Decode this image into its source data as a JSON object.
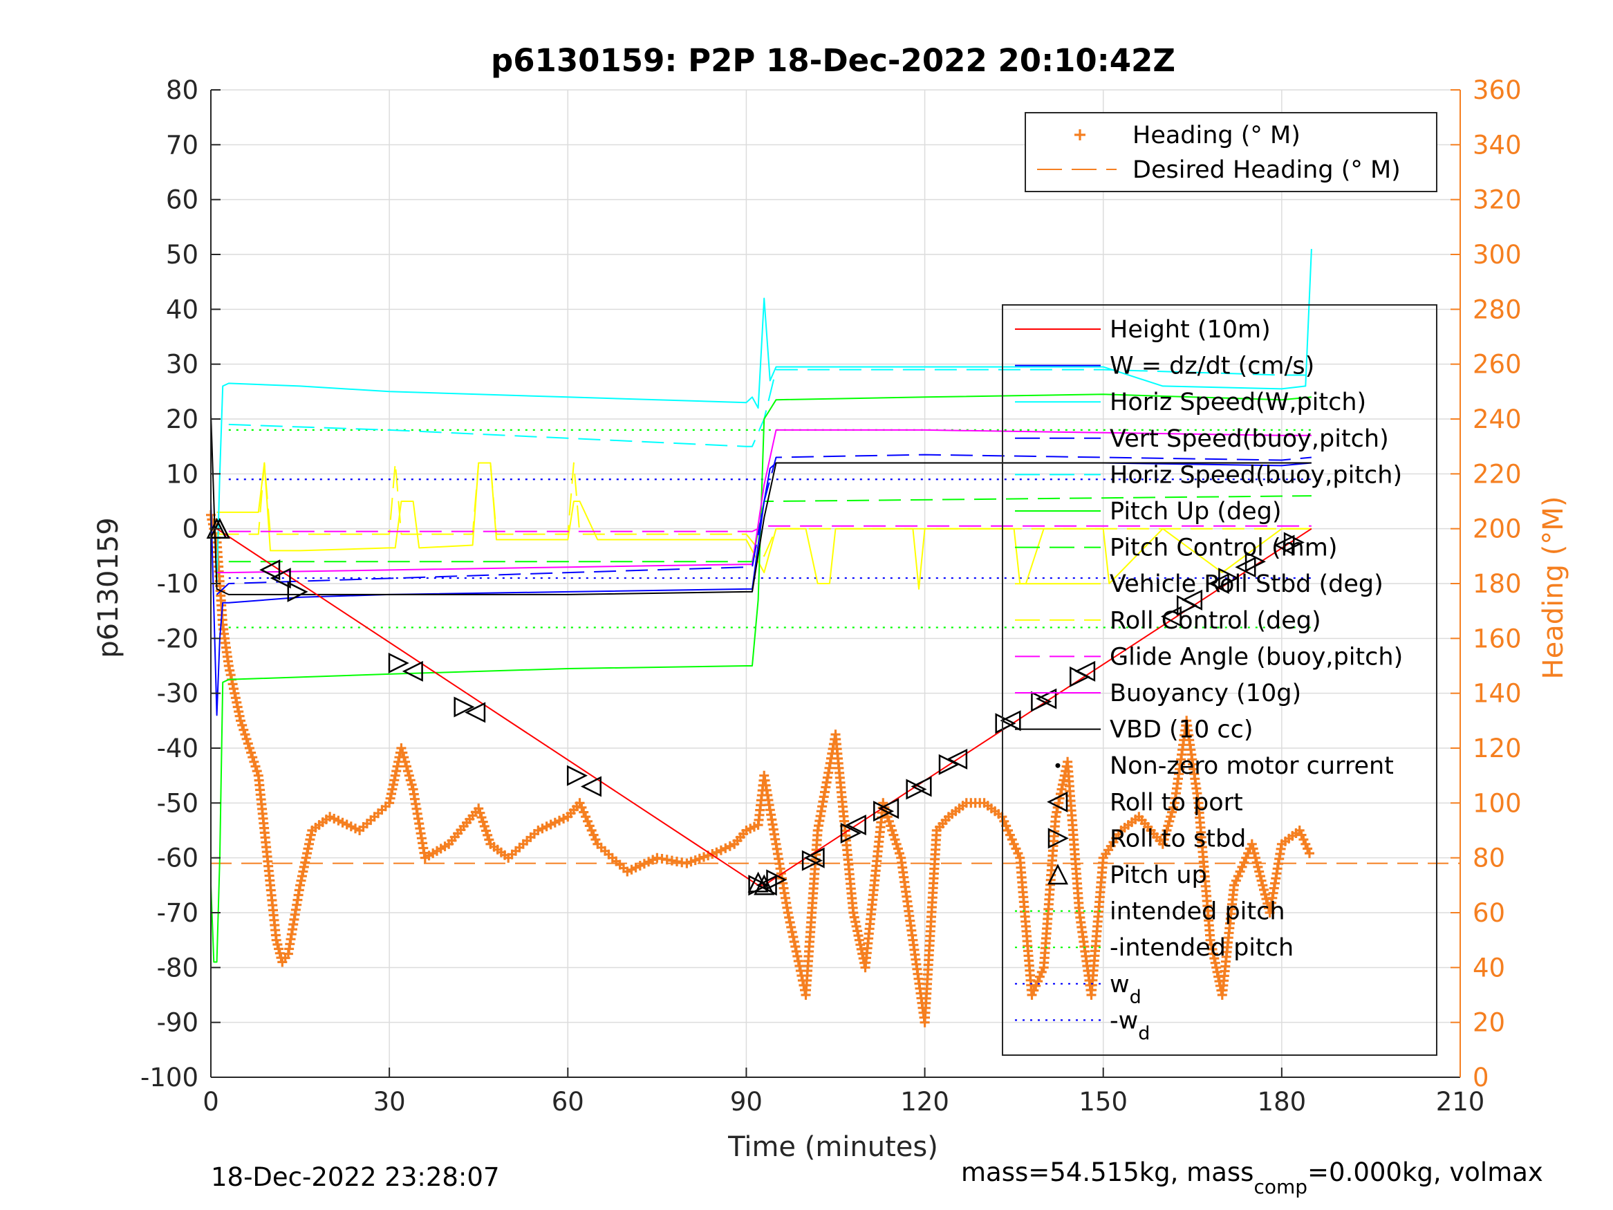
{
  "chart_data": {
    "type": "line",
    "title": "p6130159: P2P 18-Dec-2022 20:10:42Z",
    "xlabel": "Time (minutes)",
    "ylabel": "p6130159",
    "y2label": "Heading (°M)",
    "xlim": [
      0,
      210
    ],
    "ylim": [
      -100,
      80
    ],
    "y2lim": [
      0,
      360
    ],
    "xticks": [
      "0",
      "30",
      "60",
      "90",
      "120",
      "150",
      "180",
      "210"
    ],
    "yticks": [
      "80",
      "70",
      "60",
      "50",
      "40",
      "30",
      "20",
      "10",
      "0",
      "-10",
      "-20",
      "-30",
      "-40",
      "-50",
      "-60",
      "-70",
      "-80",
      "-90",
      "-100"
    ],
    "y2ticks": [
      "360",
      "340",
      "320",
      "300",
      "280",
      "260",
      "240",
      "220",
      "200",
      "180",
      "160",
      "140",
      "120",
      "100",
      "80",
      "60",
      "40",
      "20",
      "0"
    ],
    "grid": true,
    "legend_heading": [
      {
        "name": "Heading (° M)",
        "color": "#f57f20",
        "style": "plus"
      },
      {
        "name": "Desired Heading (° M)",
        "color": "#f57f20",
        "style": "dash"
      }
    ],
    "legend_main": [
      {
        "name": "Height (10m)",
        "color": "#ff0000",
        "style": "solid"
      },
      {
        "name": "W = dz/dt (cm/s)",
        "color": "#0000ff",
        "style": "solid"
      },
      {
        "name": "Horiz Speed(W,pitch)",
        "color": "#00ffff",
        "style": "solid"
      },
      {
        "name": "Vert Speed(buoy,pitch)",
        "color": "#0000ff",
        "style": "dash"
      },
      {
        "name": "Horiz Speed(buoy,pitch)",
        "color": "#00ffff",
        "style": "dash"
      },
      {
        "name": "Pitch Up (deg)",
        "color": "#00ff00",
        "style": "solid"
      },
      {
        "name": "Pitch Control (mm)",
        "color": "#00ff00",
        "style": "dash"
      },
      {
        "name": "Vehicle Roll Stbd (deg)",
        "color": "#ffff00",
        "style": "solid"
      },
      {
        "name": "Roll Control (deg)",
        "color": "#ffff00",
        "style": "dash"
      },
      {
        "name": "Glide Angle (buoy,pitch)",
        "color": "#ff00ff",
        "style": "dash"
      },
      {
        "name": "Buoyancy (10g)",
        "color": "#ff00ff",
        "style": "solid"
      },
      {
        "name": "VBD (10 cc)",
        "color": "#000000",
        "style": "solid"
      },
      {
        "name": "Non-zero motor current",
        "color": "#000000",
        "style": "dot"
      },
      {
        "name": "Roll to port",
        "color": "#000000",
        "style": "tri-left"
      },
      {
        "name": "Roll to stbd",
        "color": "#000000",
        "style": "tri-right"
      },
      {
        "name": "Pitch up",
        "color": "#000000",
        "style": "tri-up"
      },
      {
        "name": "intended pitch",
        "color": "#00ff00",
        "style": "dot"
      },
      {
        "name": "-intended pitch",
        "color": "#00ff00",
        "style": "dot"
      },
      {
        "name": "w",
        "sub": "d",
        "color": "#0000ff",
        "style": "dot"
      },
      {
        "name": "-w",
        "sub": "d",
        "color": "#0000ff",
        "style": "dot"
      }
    ],
    "series": [
      {
        "name": "Height (10m)",
        "color": "#ff0000",
        "x": [
          0,
          1,
          92,
          93,
          185
        ],
        "y": [
          0,
          0,
          -65,
          -65,
          0
        ]
      },
      {
        "name": "W = dz/dt (cm/s)",
        "color": "#0000ff",
        "x": [
          0,
          1,
          1.5,
          2,
          3,
          15,
          30,
          60,
          90,
          91,
          93,
          94,
          95,
          120,
          150,
          180,
          185
        ],
        "y": [
          5,
          -34,
          -20,
          -13.5,
          -13.5,
          -12.5,
          -12,
          -11.5,
          -11,
          -11,
          5,
          11,
          12,
          12,
          12,
          11.5,
          12
        ]
      },
      {
        "name": "Horiz Speed(W,pitch)",
        "color": "#00ffff",
        "x": [
          1,
          1.5,
          2,
          3,
          15,
          30,
          60,
          90,
          91,
          92,
          93,
          94,
          95,
          120,
          150,
          160,
          180,
          184,
          185
        ],
        "y": [
          -10,
          10,
          26,
          26.5,
          26,
          25,
          24,
          23,
          24,
          22,
          42,
          27,
          29.5,
          29.5,
          29.5,
          26,
          25.5,
          26,
          51
        ]
      },
      {
        "name": "Vert Speed(buoy,pitch)",
        "color": "#0000ff",
        "x": [
          1,
          3,
          60,
          90,
          91,
          93,
          95,
          120,
          150,
          180,
          185
        ],
        "y": [
          -12,
          -10,
          -8,
          -7,
          -7,
          5,
          13,
          13.5,
          13,
          12.5,
          13
        ]
      },
      {
        "name": "Horiz Speed(buoy,pitch)",
        "color": "#00ffff",
        "x": [
          3,
          30,
          60,
          90,
          91,
          93,
          95,
          120,
          150,
          180,
          185
        ],
        "y": [
          19,
          18,
          16.5,
          15,
          15,
          20,
          29,
          29,
          29,
          28,
          28
        ]
      },
      {
        "name": "Pitch Up (deg)",
        "color": "#00ff00",
        "x": [
          0,
          0.5,
          1,
          1.5,
          2,
          3,
          30,
          60,
          90,
          91,
          92,
          93,
          95,
          120,
          150,
          180,
          185
        ],
        "y": [
          -65,
          -79,
          -79,
          -60,
          -28,
          -27.5,
          -26.5,
          -25.5,
          -25,
          -25,
          -13,
          20,
          23.5,
          24,
          24.5,
          23.5,
          24
        ]
      },
      {
        "name": "Pitch Control (mm)",
        "color": "#00ff00",
        "x": [
          3,
          90,
          91,
          93,
          95,
          185
        ],
        "y": [
          -6,
          -6,
          -6,
          5,
          5,
          6
        ]
      },
      {
        "name": "Glide Angle (buoy,pitch)",
        "color": "#ff00ff",
        "x": [
          3,
          90,
          91,
          93,
          95,
          185
        ],
        "y": [
          -0.5,
          -0.5,
          -0.5,
          0.5,
          0.5,
          0.5
        ]
      },
      {
        "name": "Buoyancy (10g)",
        "color": "#ff00ff",
        "x": [
          1,
          3,
          60,
          90,
          91,
          93,
          95,
          120,
          150,
          180,
          185
        ],
        "y": [
          -8,
          -8,
          -7,
          -6.5,
          -6.5,
          8,
          18,
          18,
          17.5,
          17,
          17
        ]
      },
      {
        "name": "VBD (10 cc)",
        "color": "#000000",
        "x": [
          0,
          0.5,
          1,
          3,
          60,
          90,
          91,
          93,
          95,
          120,
          150,
          180,
          185
        ],
        "y": [
          21,
          5,
          -11,
          -12,
          -12,
          -11.5,
          -11.5,
          2,
          12,
          12,
          12,
          12,
          12
        ]
      },
      {
        "name": "Vehicle Roll Stbd (deg)",
        "color": "#ffff00",
        "x": [
          1,
          3,
          8,
          9,
          10,
          15,
          30,
          31,
          32,
          34,
          35,
          44,
          45,
          47,
          48,
          60,
          61,
          62,
          65,
          66,
          90,
          93,
          95,
          100,
          102,
          104,
          105,
          118,
          119,
          120,
          130,
          135,
          136,
          137,
          140,
          150,
          151,
          160,
          170,
          180,
          185
        ],
        "y": [
          3,
          3,
          3,
          12,
          -4,
          -4,
          -3.5,
          -3.5,
          5,
          5,
          -3.5,
          -3,
          12,
          12,
          -2,
          -2,
          5,
          5,
          -2,
          -2,
          -2,
          -8,
          0,
          0,
          -10,
          -10,
          0,
          0,
          -11,
          0,
          0,
          0,
          -10,
          -10,
          0,
          0,
          -10,
          0,
          -8,
          0,
          0
        ]
      },
      {
        "name": "Roll Control (deg)",
        "color": "#ffff00",
        "x": [
          1,
          8,
          9,
          10,
          30,
          31,
          32,
          44,
          45,
          47,
          48,
          60,
          61,
          62,
          90,
          93,
          95,
          185
        ],
        "y": [
          -1,
          -1,
          12,
          -1,
          -1,
          12,
          -1,
          -1,
          12,
          12,
          -1,
          -1,
          12,
          -1,
          -1,
          -5,
          0,
          0
        ]
      },
      {
        "name": "Heading (° M)",
        "color": "#f57f20",
        "axis": "right",
        "x": [
          0,
          1,
          2,
          3,
          5,
          8,
          10,
          11,
          12,
          13,
          15,
          17,
          20,
          25,
          30,
          32,
          34,
          36,
          40,
          45,
          47,
          50,
          55,
          60,
          62,
          65,
          70,
          75,
          80,
          85,
          88,
          90,
          92,
          93,
          95,
          97,
          100,
          102,
          105,
          108,
          110,
          113,
          116,
          120,
          122,
          124,
          127,
          130,
          133,
          136,
          138,
          140,
          142,
          144,
          146,
          148,
          150,
          153,
          156,
          160,
          162,
          164,
          166,
          168,
          170,
          172,
          175,
          178,
          180,
          183,
          185
        ],
        "y": [
          205,
          195,
          165,
          150,
          130,
          110,
          70,
          50,
          42,
          45,
          70,
          90,
          95,
          90,
          100,
          120,
          105,
          80,
          85,
          98,
          85,
          80,
          90,
          95,
          100,
          85,
          75,
          80,
          78,
          82,
          85,
          90,
          92,
          110,
          85,
          60,
          30,
          90,
          125,
          60,
          40,
          100,
          80,
          20,
          90,
          95,
          100,
          100,
          95,
          80,
          30,
          40,
          95,
          115,
          60,
          30,
          80,
          90,
          95,
          85,
          100,
          130,
          100,
          50,
          30,
          70,
          85,
          60,
          85,
          90,
          80
        ]
      },
      {
        "name": "Desired Heading (° M)",
        "color": "#f57f20",
        "axis": "right",
        "x": [
          0,
          210
        ],
        "y": [
          78,
          78
        ]
      }
    ],
    "intended_pitch": 18,
    "wd": 9,
    "roll_to_port_markers": [
      {
        "x": 10,
        "y": -7.5
      },
      {
        "x": 11.8,
        "y": -9
      },
      {
        "x": 34,
        "y": -26
      },
      {
        "x": 44.5,
        "y": -33.5
      },
      {
        "x": 64,
        "y": -47
      },
      {
        "x": 93.5,
        "y": -65
      },
      {
        "x": 101.5,
        "y": -60
      },
      {
        "x": 108.5,
        "y": -54
      },
      {
        "x": 114,
        "y": -51
      },
      {
        "x": 119.5,
        "y": -47
      },
      {
        "x": 125.5,
        "y": -42
      },
      {
        "x": 134.5,
        "y": -35
      },
      {
        "x": 140.5,
        "y": -31
      },
      {
        "x": 147,
        "y": -26
      },
      {
        "x": 161.5,
        "y": -16
      },
      {
        "x": 165,
        "y": -13
      },
      {
        "x": 169.5,
        "y": -10
      },
      {
        "x": 174,
        "y": -7
      },
      {
        "x": 180.5,
        "y": -3
      }
    ],
    "roll_to_stbd_markers": [
      {
        "x": 14.5,
        "y": -11.5
      },
      {
        "x": 31.5,
        "y": -24.5
      },
      {
        "x": 42.5,
        "y": -32.5
      },
      {
        "x": 61.5,
        "y": -45
      },
      {
        "x": 92,
        "y": -65
      },
      {
        "x": 95,
        "y": -64
      },
      {
        "x": 101,
        "y": -60.5
      },
      {
        "x": 107.5,
        "y": -55.5
      },
      {
        "x": 113,
        "y": -51.5
      },
      {
        "x": 118.5,
        "y": -47.5
      },
      {
        "x": 124,
        "y": -43
      },
      {
        "x": 133.5,
        "y": -35.5
      },
      {
        "x": 139.5,
        "y": -31.5
      },
      {
        "x": 146,
        "y": -27
      },
      {
        "x": 164,
        "y": -14
      },
      {
        "x": 171,
        "y": -9
      },
      {
        "x": 175.5,
        "y": -6
      },
      {
        "x": 182,
        "y": -2.5
      }
    ],
    "pitch_up_markers": [
      {
        "x": 1,
        "y": 0
      },
      {
        "x": 1.5,
        "y": 0
      },
      {
        "x": 92,
        "y": -64.5
      },
      {
        "x": 93,
        "y": -65
      }
    ],
    "footer_left": "18-Dec-2022 23:28:07",
    "footer_right_parts": [
      "mass=54.515kg, mass",
      "comp",
      "=0.000kg, volmax"
    ]
  }
}
